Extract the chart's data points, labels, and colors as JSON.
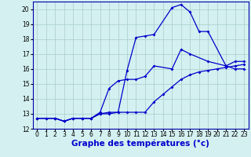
{
  "xlabel": "Graphe des températures (°c)",
  "bg_color": "#d4f0f0",
  "line_color": "#0000cc",
  "grid_color": "#aacccc",
  "xlim": [
    -0.5,
    23.5
  ],
  "ylim": [
    12,
    20.5
  ],
  "yticks": [
    12,
    13,
    14,
    15,
    16,
    17,
    18,
    19,
    20
  ],
  "xticks": [
    0,
    1,
    2,
    3,
    4,
    5,
    6,
    7,
    8,
    9,
    10,
    11,
    12,
    13,
    14,
    15,
    16,
    17,
    18,
    19,
    20,
    21,
    22,
    23
  ],
  "line1_x": [
    0,
    1,
    2,
    3,
    4,
    5,
    6,
    7,
    8,
    9,
    10,
    11,
    12,
    13,
    15,
    16,
    17,
    18,
    19,
    21,
    22,
    23
  ],
  "line1_y": [
    12.7,
    12.7,
    12.7,
    12.5,
    12.7,
    12.7,
    12.7,
    13.0,
    13.1,
    13.1,
    15.9,
    18.1,
    18.2,
    18.3,
    20.1,
    20.3,
    19.8,
    18.5,
    18.5,
    16.2,
    16.0,
    16.0
  ],
  "line2_x": [
    0,
    2,
    3,
    4,
    5,
    6,
    7,
    8,
    9,
    10,
    11,
    12,
    13,
    15,
    16,
    17,
    19,
    21,
    22,
    23
  ],
  "line2_y": [
    12.7,
    12.7,
    12.5,
    12.7,
    12.7,
    12.7,
    13.1,
    14.7,
    15.2,
    15.3,
    15.3,
    15.5,
    16.2,
    16.0,
    17.3,
    17.0,
    16.5,
    16.2,
    16.5,
    16.5
  ],
  "line3_x": [
    0,
    1,
    2,
    3,
    4,
    5,
    6,
    7,
    8,
    9,
    10,
    11,
    12,
    13,
    14,
    15,
    16,
    17,
    18,
    19,
    20,
    21,
    22,
    23
  ],
  "line3_y": [
    12.7,
    12.7,
    12.7,
    12.5,
    12.7,
    12.7,
    12.7,
    13.0,
    13.0,
    13.1,
    13.1,
    13.1,
    13.1,
    13.8,
    14.3,
    14.8,
    15.3,
    15.6,
    15.8,
    15.9,
    16.0,
    16.1,
    16.2,
    16.3
  ],
  "xlabel_fontsize": 7.5,
  "tick_fontsize": 5.5,
  "markersize": 2.0,
  "linewidth": 0.9
}
